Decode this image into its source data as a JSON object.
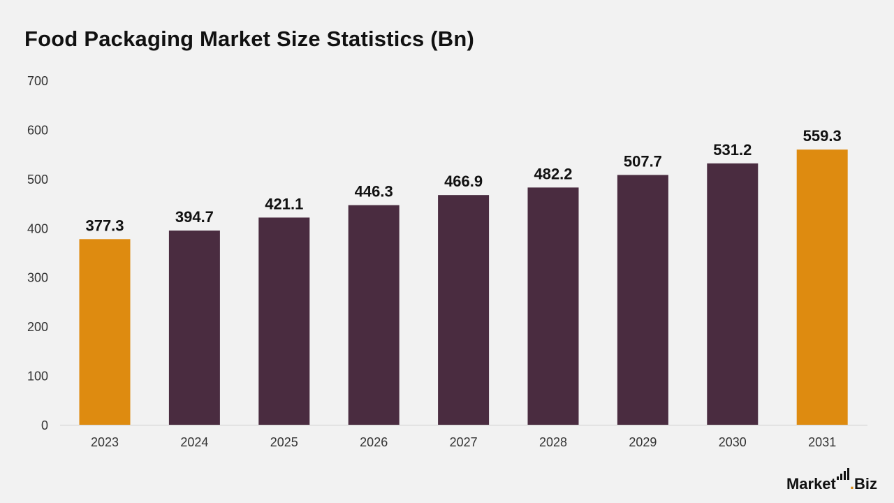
{
  "page": {
    "title": "Food Packaging Market Size Statistics (Bn)"
  },
  "brand": {
    "part1": "Market",
    "dot": ".",
    "part2": "Biz",
    "icon": "bar-signal-icon"
  },
  "colors": {
    "bar_default": "#4a2c40",
    "bar_highlight": "#de8b10",
    "background": "#f2f2f2",
    "axis_line": "#d0d0d0"
  },
  "chart_data": {
    "type": "bar",
    "categories": [
      "2023",
      "2024",
      "2025",
      "2026",
      "2027",
      "2028",
      "2029",
      "2030",
      "2031"
    ],
    "values": [
      377.3,
      394.7,
      421.1,
      446.3,
      466.9,
      482.2,
      507.7,
      531.2,
      559.3
    ],
    "value_labels": [
      "377.3",
      "394.7",
      "421.1",
      "446.3",
      "466.9",
      "482.2",
      "507.7",
      "531.2",
      "559.3"
    ],
    "highlighted": [
      "2023",
      "2031"
    ],
    "title": "Food Packaging Market Size Statistics (Bn)",
    "xlabel": "",
    "ylabel": "",
    "ylim": [
      0,
      700
    ],
    "yticks": [
      0,
      100,
      200,
      300,
      400,
      500,
      600,
      700
    ],
    "grid": false,
    "legend": "none"
  }
}
